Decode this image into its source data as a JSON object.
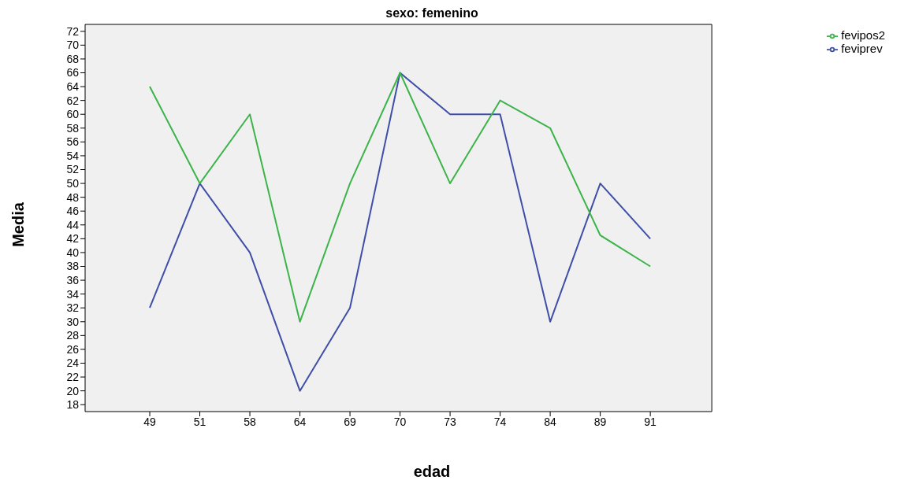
{
  "chart_data": {
    "type": "line",
    "title": "sexo: femenino",
    "xlabel": "edad",
    "ylabel": "Media",
    "categories": [
      "49",
      "51",
      "58",
      "64",
      "69",
      "70",
      "73",
      "74",
      "84",
      "89",
      "91"
    ],
    "series": [
      {
        "name": "feviprev",
        "color": "#3f4fa8",
        "values": [
          32,
          50,
          40,
          20,
          32,
          66,
          60,
          60,
          30,
          50,
          42
        ]
      },
      {
        "name": "fevipos2",
        "color": "#3cb44a",
        "values": [
          64,
          50,
          60,
          30,
          50,
          66,
          50,
          62,
          58,
          42.5,
          38
        ]
      }
    ],
    "ylim": [
      17,
      73
    ],
    "yticks": [
      18,
      20,
      22,
      24,
      26,
      28,
      30,
      32,
      34,
      36,
      38,
      40,
      42,
      44,
      46,
      48,
      50,
      52,
      54,
      56,
      58,
      60,
      62,
      64,
      66,
      68,
      70,
      72
    ],
    "grid": false,
    "legend": "top right",
    "marker": "none",
    "line_style": "solid"
  }
}
